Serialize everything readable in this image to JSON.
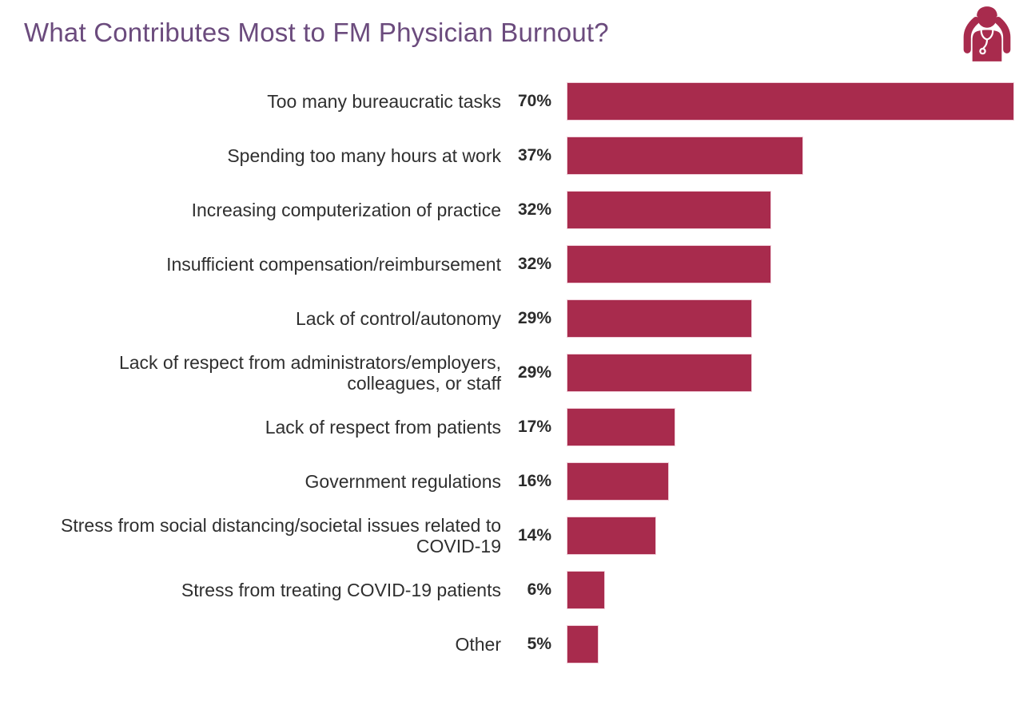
{
  "header": {
    "title": "What Contributes Most to FM Physician Burnout?",
    "icon": "burnout-physician-icon"
  },
  "colors": {
    "bar": "#A82B4D",
    "bar_outline": "#F0CDD8",
    "title": "#6B4B7D",
    "label_text": "#2F2F2F"
  },
  "chart_data": {
    "type": "bar",
    "orientation": "horizontal",
    "title": "What Contributes Most to FM Physician Burnout?",
    "xlabel": "",
    "ylabel": "",
    "unit": "%",
    "xlim": [
      0,
      70
    ],
    "grid": false,
    "legend": false,
    "categories": [
      "Too many bureaucratic tasks",
      "Spending too many hours at work",
      "Increasing computerization of practice",
      "Insufficient compensation/reimbursement",
      "Lack of control/autonomy",
      "Lack of respect from administrators/employers, colleagues, or staff",
      "Lack of respect from patients",
      "Government regulations",
      "Stress from social distancing/societal issues related to COVID-19",
      "Stress from treating COVID-19 patients",
      "Other"
    ],
    "values": [
      70,
      37,
      32,
      32,
      29,
      29,
      17,
      16,
      14,
      6,
      5
    ],
    "value_labels": [
      "70%",
      "37%",
      "32%",
      "32%",
      "29%",
      "29%",
      "17%",
      "16%",
      "14%",
      "6%",
      "5%"
    ]
  }
}
